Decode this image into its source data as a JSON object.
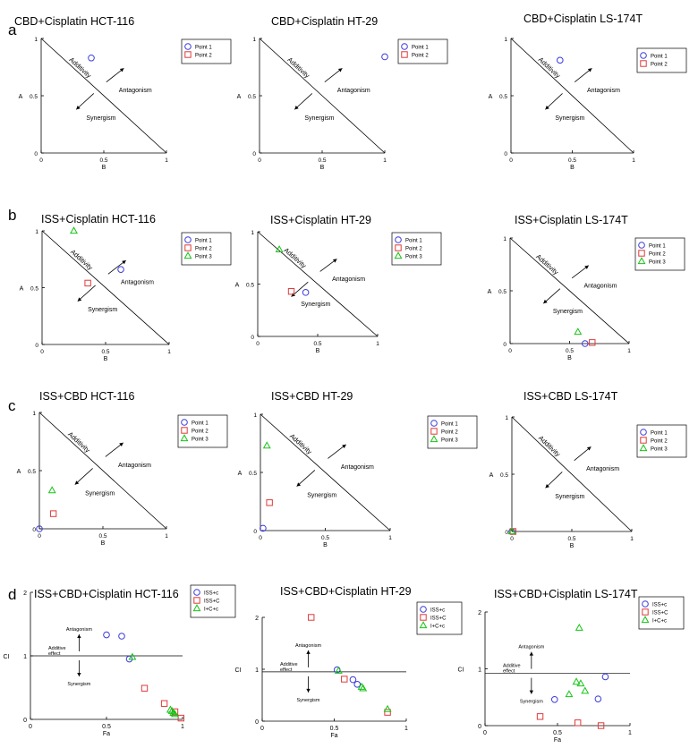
{
  "colors": {
    "blue": "#3b3bdc",
    "red": "#e03a3a",
    "green": "#17c417",
    "axis": "#000000"
  },
  "row_labels": [
    "a",
    "b",
    "c",
    "d"
  ],
  "iso_text": {
    "additivity": "Additivity",
    "antagonism": "Antagonism",
    "synergism": "Synergism"
  },
  "ci_text": {
    "antagonism": "Antagonism",
    "synergism": "Synergism",
    "additive1": "Additive",
    "additive2": "effect"
  },
  "chart_data": [
    {
      "id": "a1",
      "type": "scatter",
      "kind": "isobologram",
      "title": "CBD+Cisplatin HCT-116",
      "xlabel": "B",
      "ylabel": "A",
      "xlim": [
        0,
        1
      ],
      "ylim": [
        0,
        1
      ],
      "xticks": [
        "0",
        "0.5",
        "1"
      ],
      "yticks": [
        "0",
        "0.5",
        "1"
      ],
      "legend": [
        {
          "name": "Point 1",
          "marker": "circle"
        },
        {
          "name": "Point 2",
          "marker": "square"
        }
      ],
      "series": [
        {
          "name": "Point 1",
          "marker": "circle",
          "points": [
            [
              0.4,
              0.83
            ]
          ]
        }
      ]
    },
    {
      "id": "a2",
      "type": "scatter",
      "kind": "isobologram",
      "title": "CBD+Cisplatin HT-29",
      "xlabel": "B",
      "ylabel": "A",
      "xlim": [
        0,
        1
      ],
      "ylim": [
        0,
        1
      ],
      "xticks": [
        "0",
        "0.5",
        "1"
      ],
      "yticks": [
        "0",
        "0.5",
        "1"
      ],
      "legend": [
        {
          "name": "Point 1",
          "marker": "circle"
        },
        {
          "name": "Point 2",
          "marker": "square"
        }
      ],
      "series": [
        {
          "name": "Point 1",
          "marker": "circle",
          "points": [
            [
              1.0,
              0.84
            ]
          ]
        }
      ]
    },
    {
      "id": "a3",
      "type": "scatter",
      "kind": "isobologram",
      "title": "CBD+Cisplatin LS-174T",
      "xlabel": "B",
      "ylabel": "A",
      "xlim": [
        0,
        1
      ],
      "ylim": [
        0,
        1
      ],
      "xticks": [
        "0",
        "0.5",
        "1"
      ],
      "yticks": [
        "0",
        "0.5",
        "1"
      ],
      "legend": [
        {
          "name": "Point 1",
          "marker": "circle"
        },
        {
          "name": "Point 2",
          "marker": "square"
        }
      ],
      "series": [
        {
          "name": "Point 1",
          "marker": "circle",
          "points": [
            [
              0.4,
              0.81
            ]
          ]
        }
      ]
    },
    {
      "id": "b1",
      "type": "scatter",
      "kind": "isobologram",
      "title": "ISS+Cisplatin HCT-116",
      "xlabel": "B",
      "ylabel": "A",
      "xlim": [
        0,
        1
      ],
      "ylim": [
        0,
        1
      ],
      "xticks": [
        "0",
        "0.5",
        "1"
      ],
      "yticks": [
        "0",
        "0.5",
        "1"
      ],
      "legend": [
        {
          "name": "Point 1",
          "marker": "circle"
        },
        {
          "name": "Point 2",
          "marker": "square"
        },
        {
          "name": "Point 3",
          "marker": "triangle"
        }
      ],
      "series": [
        {
          "name": "Point 1",
          "marker": "circle",
          "points": [
            [
              0.62,
              0.66
            ]
          ]
        },
        {
          "name": "Point 2",
          "marker": "square",
          "points": [
            [
              0.36,
              0.54
            ]
          ]
        },
        {
          "name": "Point 3",
          "marker": "triangle",
          "points": [
            [
              0.25,
              1.0
            ]
          ]
        }
      ]
    },
    {
      "id": "b2",
      "type": "scatter",
      "kind": "isobologram",
      "title": "ISS+Cisplatin HT-29",
      "xlabel": "B",
      "ylabel": "A",
      "xlim": [
        0,
        1
      ],
      "ylim": [
        0,
        1
      ],
      "xticks": [
        "0",
        "0.5",
        "1"
      ],
      "yticks": [
        "0",
        "0.5",
        "1"
      ],
      "legend": [
        {
          "name": "Point 1",
          "marker": "circle"
        },
        {
          "name": "Point 2",
          "marker": "square"
        },
        {
          "name": "Point 3",
          "marker": "triangle"
        }
      ],
      "series": [
        {
          "name": "Point 1",
          "marker": "circle",
          "points": [
            [
              0.4,
              0.42
            ]
          ]
        },
        {
          "name": "Point 2",
          "marker": "square",
          "points": [
            [
              0.28,
              0.43
            ]
          ]
        },
        {
          "name": "Point 3",
          "marker": "triangle",
          "points": [
            [
              0.18,
              0.83
            ]
          ]
        }
      ]
    },
    {
      "id": "b3",
      "type": "scatter",
      "kind": "isobologram",
      "title": "ISS+Cisplatin LS-174T",
      "xlabel": "B",
      "ylabel": "A",
      "xlim": [
        0,
        1
      ],
      "ylim": [
        0,
        1
      ],
      "xticks": [
        "0",
        "0.5",
        "1"
      ],
      "yticks": [
        "0",
        "0.5",
        "1"
      ],
      "legend": [
        {
          "name": "Point 1",
          "marker": "circle"
        },
        {
          "name": "Point 2",
          "marker": "square"
        },
        {
          "name": "Point 3",
          "marker": "triangle"
        }
      ],
      "series": [
        {
          "name": "Point 1",
          "marker": "circle",
          "points": [
            [
              0.63,
              0.0
            ]
          ]
        },
        {
          "name": "Point 2",
          "marker": "square",
          "points": [
            [
              0.69,
              0.01
            ]
          ]
        },
        {
          "name": "Point 3",
          "marker": "triangle",
          "points": [
            [
              0.57,
              0.11
            ]
          ]
        }
      ]
    },
    {
      "id": "c1",
      "type": "scatter",
      "kind": "isobologram",
      "title": "ISS+CBD HCT-116",
      "xlabel": "B",
      "ylabel": "A",
      "xlim": [
        0,
        1
      ],
      "ylim": [
        0,
        1
      ],
      "xticks": [
        "0",
        "0.5",
        "1"
      ],
      "yticks": [
        "0",
        "0.5",
        "1"
      ],
      "legend": [
        {
          "name": "Point 1",
          "marker": "circle"
        },
        {
          "name": "Point 2",
          "marker": "square"
        },
        {
          "name": "Point 3",
          "marker": "triangle"
        }
      ],
      "series": [
        {
          "name": "Point 1",
          "marker": "circle",
          "points": [
            [
              0.0,
              0.0
            ]
          ]
        },
        {
          "name": "Point 2",
          "marker": "square",
          "points": [
            [
              0.11,
              0.13
            ]
          ]
        },
        {
          "name": "Point 3",
          "marker": "triangle",
          "points": [
            [
              0.1,
              0.33
            ]
          ]
        }
      ]
    },
    {
      "id": "c2",
      "type": "scatter",
      "kind": "isobologram",
      "title": "ISS+CBD HT-29",
      "xlabel": "B",
      "ylabel": "A",
      "xlim": [
        0,
        1
      ],
      "ylim": [
        0,
        1
      ],
      "xticks": [
        "0",
        "0.5",
        "1"
      ],
      "yticks": [
        "0",
        "0.5",
        "1"
      ],
      "legend": [
        {
          "name": "Point 1",
          "marker": "circle"
        },
        {
          "name": "Point 2",
          "marker": "square"
        },
        {
          "name": "Point 3",
          "marker": "triangle"
        }
      ],
      "series": [
        {
          "name": "Point 1",
          "marker": "circle",
          "points": [
            [
              0.02,
              0.02
            ]
          ]
        },
        {
          "name": "Point 2",
          "marker": "square",
          "points": [
            [
              0.07,
              0.24
            ]
          ]
        },
        {
          "name": "Point 3",
          "marker": "triangle",
          "points": [
            [
              0.05,
              0.73
            ]
          ]
        }
      ]
    },
    {
      "id": "c3",
      "type": "scatter",
      "kind": "isobologram",
      "title": "ISS+CBD LS-174T",
      "xlabel": "B",
      "ylabel": "A",
      "xlim": [
        0,
        1
      ],
      "ylim": [
        0,
        1
      ],
      "xticks": [
        "0",
        "0.5",
        "1"
      ],
      "yticks": [
        "0",
        "0.5",
        "1"
      ],
      "legend": [
        {
          "name": "Point 1",
          "marker": "circle"
        },
        {
          "name": "Point 2",
          "marker": "square"
        },
        {
          "name": "Point 3",
          "marker": "triangle"
        }
      ],
      "series": [
        {
          "name": "Point 1",
          "marker": "circle",
          "points": [
            [
              0.0,
              0.0
            ]
          ]
        },
        {
          "name": "Point 2",
          "marker": "square",
          "points": [
            [
              0.01,
              0.0
            ]
          ]
        },
        {
          "name": "Point 3",
          "marker": "triangle",
          "points": [
            [
              0.0,
              0.0
            ]
          ]
        }
      ]
    },
    {
      "id": "d1",
      "type": "scatter",
      "kind": "ci",
      "title": "ISS+CBD+Cisplatin HCT-116",
      "xlabel": "Fa",
      "ylabel": "CI",
      "xlim": [
        0,
        1
      ],
      "ylim": [
        0,
        2
      ],
      "xticks": [
        "0",
        "0.5",
        "1"
      ],
      "yticks": [
        "0",
        "1",
        "2"
      ],
      "additive_line": 1,
      "legend": [
        {
          "name": "ISS+c",
          "marker": "circle"
        },
        {
          "name": "ISS+C",
          "marker": "square"
        },
        {
          "name": "I+C+c",
          "marker": "triangle"
        }
      ],
      "series": [
        {
          "name": "ISS+c",
          "marker": "circle",
          "points": [
            [
              0.5,
              1.33
            ],
            [
              0.6,
              1.31
            ],
            [
              0.65,
              0.95
            ]
          ]
        },
        {
          "name": "ISS+C",
          "marker": "square",
          "points": [
            [
              0.75,
              0.49
            ],
            [
              0.88,
              0.25
            ],
            [
              0.95,
              0.12
            ],
            [
              0.99,
              0.02
            ]
          ]
        },
        {
          "name": "I+C+c",
          "marker": "triangle",
          "points": [
            [
              0.67,
              0.98
            ],
            [
              0.92,
              0.15
            ],
            [
              0.93,
              0.13
            ],
            [
              0.94,
              0.1
            ],
            [
              0.95,
              0.08
            ]
          ]
        }
      ]
    },
    {
      "id": "d2",
      "type": "scatter",
      "kind": "ci",
      "title": "ISS+CBD+Cisplatin HT-29",
      "xlabel": "Fa",
      "ylabel": "CI",
      "xlim": [
        0,
        1
      ],
      "ylim": [
        0,
        2
      ],
      "xticks": [
        "0",
        "0.5",
        "1"
      ],
      "yticks": [
        "0",
        "1",
        "2"
      ],
      "additive_line": 0.95,
      "legend": [
        {
          "name": "ISS+c",
          "marker": "circle"
        },
        {
          "name": "ISS+C",
          "marker": "square"
        },
        {
          "name": "I+C+c",
          "marker": "triangle"
        }
      ],
      "series": [
        {
          "name": "ISS+c",
          "marker": "circle",
          "points": [
            [
              0.52,
              0.99
            ],
            [
              0.63,
              0.8
            ],
            [
              0.66,
              0.71
            ]
          ]
        },
        {
          "name": "ISS+C",
          "marker": "square",
          "points": [
            [
              0.34,
              2.0
            ],
            [
              0.57,
              0.81
            ],
            [
              0.87,
              0.17
            ]
          ]
        },
        {
          "name": "I+C+c",
          "marker": "triangle",
          "points": [
            [
              0.53,
              0.97
            ],
            [
              0.69,
              0.66
            ],
            [
              0.7,
              0.63
            ],
            [
              0.87,
              0.23
            ]
          ]
        }
      ]
    },
    {
      "id": "d3",
      "type": "scatter",
      "kind": "ci",
      "title": "ISS+CBD+Cisplatin LS-174T",
      "xlabel": "Fa",
      "ylabel": "CI",
      "xlim": [
        0,
        1
      ],
      "ylim": [
        0,
        2
      ],
      "xticks": [
        "0",
        "0.5",
        "1"
      ],
      "yticks": [
        "0",
        "1",
        "2"
      ],
      "additive_line": 0.92,
      "legend": [
        {
          "name": "ISS+c",
          "marker": "circle"
        },
        {
          "name": "ISS+C",
          "marker": "square"
        },
        {
          "name": "I+C+c",
          "marker": "triangle"
        }
      ],
      "series": [
        {
          "name": "ISS+c",
          "marker": "circle",
          "points": [
            [
              0.48,
              0.46
            ],
            [
              0.78,
              0.47
            ],
            [
              0.83,
              0.86
            ]
          ]
        },
        {
          "name": "ISS+C",
          "marker": "square",
          "points": [
            [
              0.38,
              0.16
            ],
            [
              0.64,
              0.05
            ],
            [
              0.8,
              0.0
            ]
          ]
        },
        {
          "name": "I+C+c",
          "marker": "triangle",
          "points": [
            [
              0.65,
              1.72
            ],
            [
              0.63,
              0.77
            ],
            [
              0.66,
              0.74
            ],
            [
              0.69,
              0.61
            ],
            [
              0.58,
              0.55
            ]
          ]
        }
      ]
    }
  ]
}
